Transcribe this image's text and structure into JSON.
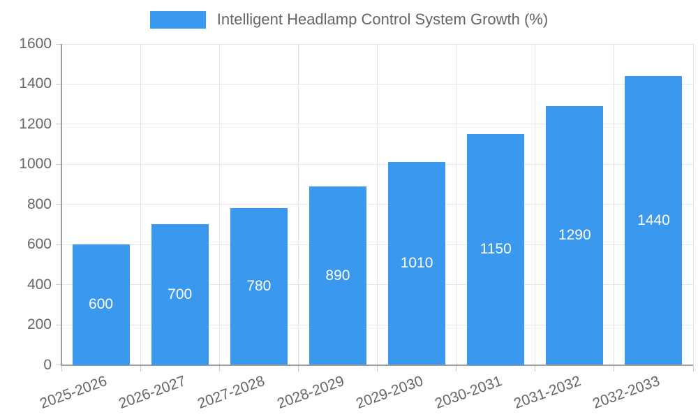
{
  "chart_data": {
    "type": "bar",
    "title": "Intelligent Headlamp Control System Growth (%)",
    "categories": [
      "2025-2026",
      "2026-2027",
      "2027-2028",
      "2028-2029",
      "2029-2030",
      "2030-2031",
      "2031-2032",
      "2032-2033"
    ],
    "values": [
      600,
      700,
      780,
      890,
      1010,
      1150,
      1290,
      1440
    ],
    "bar_value_labels": [
      "600",
      "700",
      "780",
      "890",
      "1010",
      "1150",
      "1290",
      "1440"
    ],
    "xlabel": "",
    "ylabel": "",
    "ylim": [
      0,
      1600
    ],
    "yticks": [
      0,
      200,
      400,
      600,
      800,
      1000,
      1200,
      1400,
      1600
    ],
    "grid": true,
    "legend_position": "top",
    "colors": {
      "bar": "#3A99EE",
      "bar_label": "#FFFFFF",
      "tick_text": "#666666",
      "grid_line": "#E6E6E6",
      "tick_mark": "#CCCCCC",
      "axis_line": "#9E9E9E"
    }
  }
}
